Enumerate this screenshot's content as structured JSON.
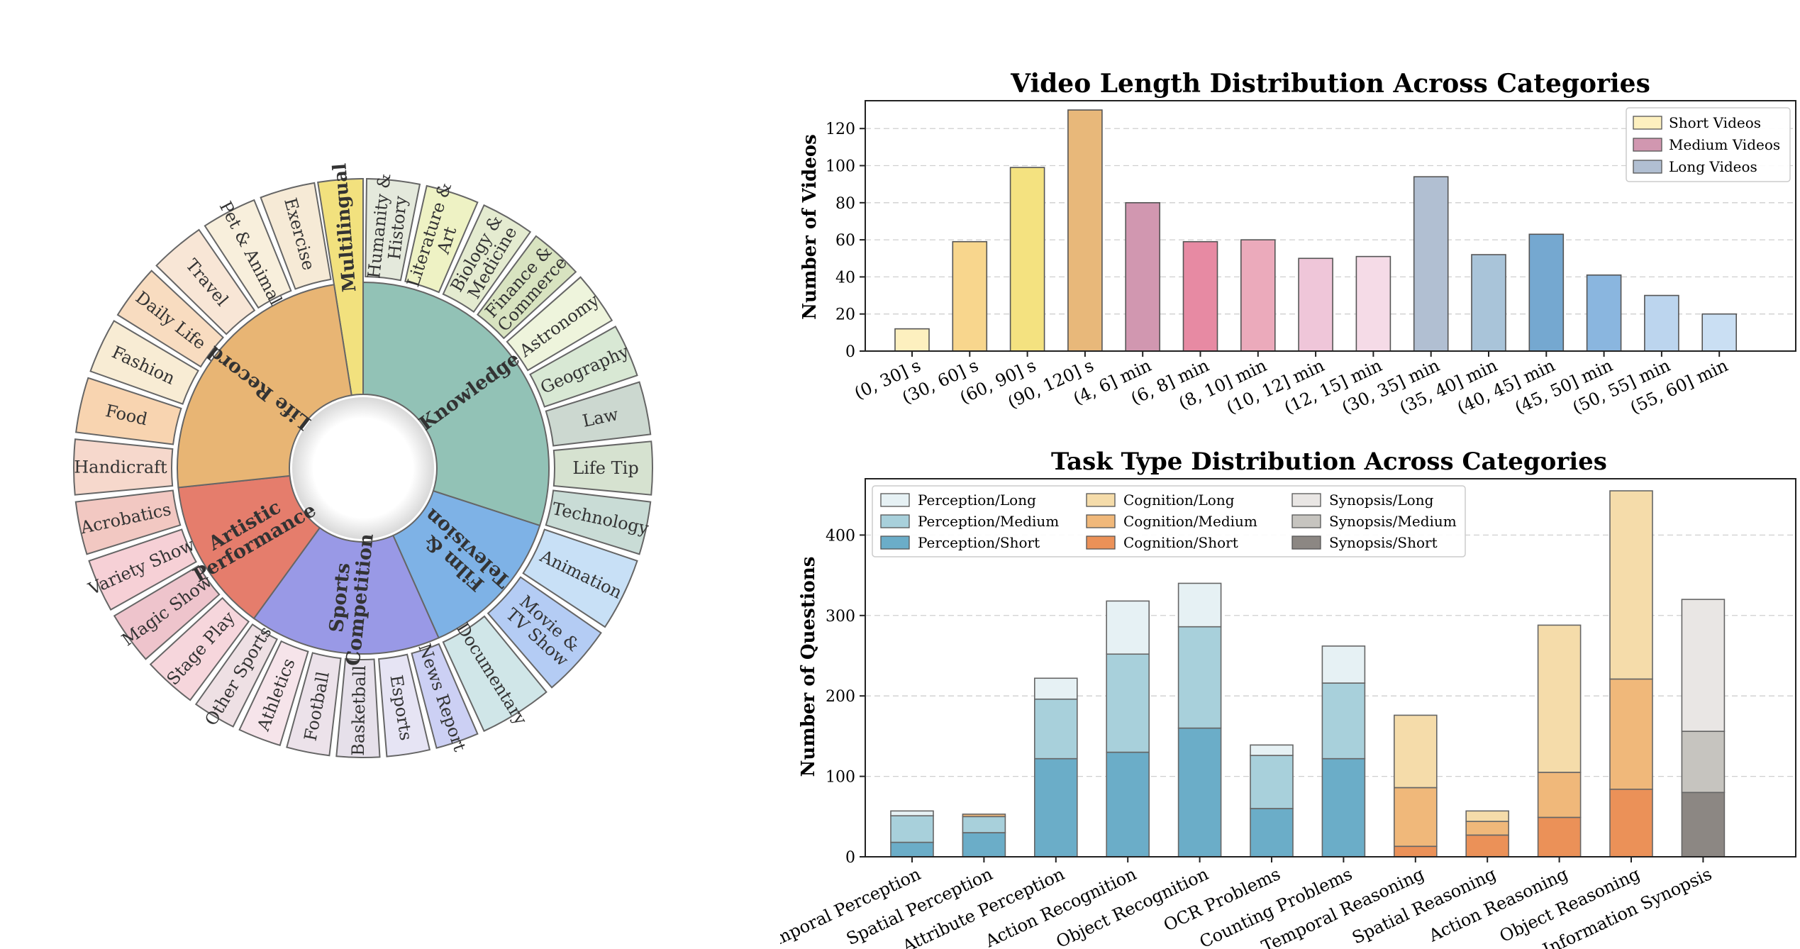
{
  "chart_data": [
    {
      "type": "sunburst",
      "inner": [
        {
          "label": "Multilingual",
          "color": "#f2e17e"
        },
        {
          "label": "Knowledge",
          "color": "#92c2b6"
        },
        {
          "label": "Film & Television",
          "color": "#7eb2e6"
        },
        {
          "label": "Sports Competition",
          "color": "#9999e6"
        },
        {
          "label": "Artistic Performance",
          "color": "#e57d6c"
        },
        {
          "label": "Life Record",
          "color": "#e8b574"
        }
      ],
      "outer": [
        {
          "label": "Multilingual",
          "color": "#fbf1b8",
          "group": 0
        },
        {
          "label": "Humanity & History",
          "color": "#e4e9dc",
          "group": 1
        },
        {
          "label": "Literature & Art",
          "color": "#eef2c4",
          "group": 1
        },
        {
          "label": "Biology & Medicine",
          "color": "#e4ebd0",
          "group": 1
        },
        {
          "label": "Finance & Commerce",
          "color": "#d8e3c0",
          "group": 1
        },
        {
          "label": "Astronomy",
          "color": "#eef4dc",
          "group": 1
        },
        {
          "label": "Geography",
          "color": "#d8e8d4",
          "group": 1
        },
        {
          "label": "Law",
          "color": "#ccd8d0",
          "group": 1
        },
        {
          "label": "Life Tip",
          "color": "#d6e2d0",
          "group": 1
        },
        {
          "label": "Technology",
          "color": "#c9dcd6",
          "group": 1
        },
        {
          "label": "Animation",
          "color": "#c8e0f6",
          "group": 2
        },
        {
          "label": "Movie & TV Show",
          "color": "#b4ccf4",
          "group": 2
        },
        {
          "label": "Documentary",
          "color": "#d0e6e8",
          "group": 2
        },
        {
          "label": "News Report",
          "color": "#ccd0f4",
          "group": 3
        },
        {
          "label": "Esports",
          "color": "#e6e4f4",
          "group": 3
        },
        {
          "label": "Basketball",
          "color": "#e6e0ea",
          "group": 3
        },
        {
          "label": "Football",
          "color": "#ece2ea",
          "group": 3
        },
        {
          "label": "Athletics",
          "color": "#f6e4ea",
          "group": 3
        },
        {
          "label": "Other Sports",
          "color": "#eee0e4",
          "group": 3
        },
        {
          "label": "Stage Play",
          "color": "#f6d6dc",
          "group": 4
        },
        {
          "label": "Magic Show",
          "color": "#eec4cc",
          "group": 4
        },
        {
          "label": "Variety Show",
          "color": "#f6d0d6",
          "group": 4
        },
        {
          "label": "Acrobatics",
          "color": "#f2c8c2",
          "group": 4
        },
        {
          "label": "Handicraft",
          "color": "#f6d8cc",
          "group": 5
        },
        {
          "label": "Food",
          "color": "#f8d4b0",
          "group": 5
        },
        {
          "label": "Fashion",
          "color": "#f8ecd4",
          "group": 5
        },
        {
          "label": "Daily Life",
          "color": "#f8dcc0",
          "group": 5
        },
        {
          "label": "Travel",
          "color": "#f8e6d6",
          "group": 5
        },
        {
          "label": "Pet & Animal",
          "color": "#f8efdc",
          "group": 5
        },
        {
          "label": "Exercise",
          "color": "#f6ead6",
          "group": 5
        }
      ]
    },
    {
      "type": "bar",
      "title": "Video Length Distribution Across Categories",
      "xlabel": "",
      "ylabel": "Number of Videos",
      "ylim": [
        0,
        135
      ],
      "yticks": [
        0,
        20,
        40,
        60,
        80,
        100,
        120
      ],
      "grid": "y dashed",
      "legend_position": "top-right",
      "legend": [
        {
          "name": "Short Videos",
          "color": "#fdf0bf"
        },
        {
          "name": "Medium Videos",
          "color": "#d197b0"
        },
        {
          "name": "Long Videos",
          "color": "#b1bfd2"
        }
      ],
      "categories": [
        "(0, 30] s",
        "(30, 60] s",
        "(60, 90] s",
        "(90, 120] s",
        "(4, 6] min",
        "(6, 8] min",
        "(8, 10] min",
        "(10, 12] min",
        "(12, 15] min",
        "(30, 35] min",
        "(35, 40] min",
        "(40, 45] min",
        "(45, 50] min",
        "(50, 55] min",
        "(55, 60] min"
      ],
      "values": [
        12,
        59,
        99,
        130,
        80,
        59,
        60,
        50,
        51,
        94,
        52,
        63,
        41,
        30,
        20
      ],
      "colors": [
        "#fdf0bf",
        "#f8d68d",
        "#f4e280",
        "#e8b87a",
        "#d197b0",
        "#e78aa3",
        "#ebaabb",
        "#efc6d9",
        "#f5dbe7",
        "#b1bfd2",
        "#a9c4d9",
        "#75a8d0",
        "#8ab6df",
        "#bcd5ee",
        "#cadff3"
      ]
    },
    {
      "type": "bar",
      "stacked": true,
      "title": "Task Type Distribution Across Categories",
      "xlabel": "",
      "ylabel": "Number of Questions",
      "ylim": [
        0,
        470
      ],
      "yticks": [
        0,
        100,
        200,
        300,
        400
      ],
      "grid": "y dashed",
      "legend_position": "top-left",
      "categories": [
        "Temporal Perception",
        "Spatial Perception",
        "Attribute Perception",
        "Action Recognition",
        "Object Recognition",
        "OCR Problems",
        "Counting Problems",
        "Temporal Reasoning",
        "Spatial Reasoning",
        "Action Reasoning",
        "Object Reasoning",
        "Information Synopsis"
      ],
      "series": [
        {
          "name": "Perception/Short",
          "color": "#6badc8",
          "values": [
            18,
            30,
            122,
            130,
            160,
            60,
            122,
            0,
            0,
            0,
            0,
            0
          ]
        },
        {
          "name": "Perception/Medium",
          "color": "#a8d0db",
          "values": [
            33,
            20,
            74,
            122,
            126,
            66,
            94,
            0,
            0,
            0,
            0,
            0
          ]
        },
        {
          "name": "Perception/Long",
          "color": "#e6f1f4",
          "values": [
            6,
            0,
            26,
            66,
            54,
            13,
            46,
            0,
            0,
            0,
            0,
            0
          ]
        },
        {
          "name": "Cognition/Short",
          "color": "#eb9158",
          "values": [
            0,
            0,
            0,
            0,
            0,
            0,
            0,
            13,
            27,
            49,
            84,
            0
          ]
        },
        {
          "name": "Cognition/Medium",
          "color": "#f0b87a",
          "values": [
            0,
            3,
            0,
            0,
            0,
            0,
            0,
            73,
            17,
            56,
            137,
            0
          ]
        },
        {
          "name": "Cognition/Long",
          "color": "#f5dcaa",
          "values": [
            0,
            0,
            0,
            0,
            0,
            0,
            0,
            90,
            13,
            183,
            234,
            0
          ]
        },
        {
          "name": "Synopsis/Short",
          "color": "#8c8783",
          "values": [
            0,
            0,
            0,
            0,
            0,
            0,
            0,
            0,
            0,
            0,
            0,
            80
          ]
        },
        {
          "name": "Synopsis/Medium",
          "color": "#c6c4bf",
          "values": [
            0,
            0,
            0,
            0,
            0,
            0,
            0,
            0,
            0,
            0,
            0,
            76
          ]
        },
        {
          "name": "Synopsis/Long",
          "color": "#e9e6e4",
          "values": [
            0,
            0,
            0,
            0,
            0,
            0,
            0,
            0,
            0,
            0,
            0,
            164
          ]
        }
      ],
      "legend_order": [
        "Perception/Long",
        "Cognition/Long",
        "Synopsis/Long",
        "Perception/Medium",
        "Cognition/Medium",
        "Synopsis/Medium",
        "Perception/Short",
        "Cognition/Short",
        "Synopsis/Short"
      ]
    }
  ]
}
